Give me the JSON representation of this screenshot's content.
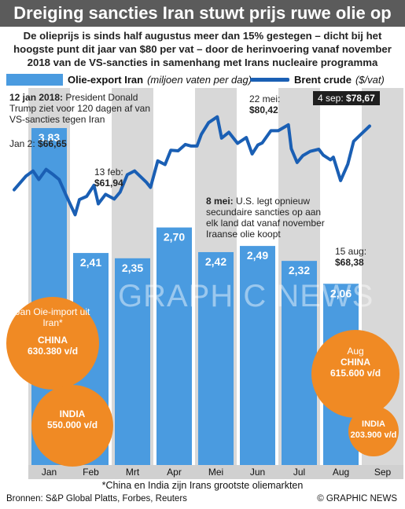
{
  "header": {
    "title": "Dreiging sancties Iran stuwt prijs ruwe olie op",
    "subtitle": "De olieprijs is sinds half augustus meer dan 15% gestegen – dicht bij het hoogste punt dit jaar van $80 per vat – door de herinvoering vanaf november 2018 van de VS-sancties in samenhang met Irans nucleaire programma"
  },
  "legend": {
    "bars_label": "Olie-export Iran",
    "bars_unit": "(miljoen vaten per dag)",
    "line_label": "Brent crude",
    "line_unit": "($/vat)"
  },
  "colors": {
    "bar": "#4a9be0",
    "line": "#1a5fb4",
    "bubble": "#f08a24",
    "header": "#5b5b5b",
    "bg_alt": "#d8d8d8"
  },
  "annotations": {
    "jan12_date": "12 jan 2018:",
    "jan12_text": "President Donald Trump ziet voor 120 dagen af van VS-sancties tegen Iran",
    "jan2_label": "Jan 2:",
    "jan2_value": "$66,65",
    "feb13_label": "13 feb:",
    "feb13_value": "$61,94",
    "may22_label": "22 mei:",
    "may22_value": "$80,42",
    "may8_date": "8 mei:",
    "may8_text": "U.S. legt opnieuw secundaire sancties op aan elk land dat vanaf november Iraanse olie koopt",
    "aug15_label": "15 aug:",
    "aug15_value": "$68,38",
    "sep4_label": "4 sep:",
    "sep4_value": "$78,67"
  },
  "bubbles": {
    "jan_title": "Jan Oie-import uit Iran*",
    "jan_china_label": "CHINA",
    "jan_china_value": "630.380 v/d",
    "jan_india_label": "INDIA",
    "jan_india_value": "550.000 v/d",
    "aug_title": "Aug",
    "aug_china_label": "CHINA",
    "aug_china_value": "615.600 v/d",
    "aug_india_label": "INDIA",
    "aug_india_value": "203.900 v/d"
  },
  "watermark": "GRAPHIC NEWS",
  "footer": {
    "note": "*China en India zijn Irans grootste oliemarkten",
    "sources": "Bronnen: S&P Global Platts, Forbes, Reuters",
    "brand": "© GRAPHIC NEWS"
  },
  "chart_data": [
    {
      "type": "bar",
      "name": "Olie-export Iran",
      "unit": "miljoen vaten per dag",
      "categories": [
        "Jan",
        "Feb",
        "Mrt",
        "Apr",
        "Mei",
        "Jun",
        "Jul",
        "Aug"
      ],
      "values": [
        3.83,
        2.41,
        2.35,
        2.7,
        2.42,
        2.49,
        2.32,
        2.06
      ],
      "value_labels": [
        "3,83",
        "2,41",
        "2,35",
        "2,70",
        "2,42",
        "2,49",
        "2,32",
        "2,06"
      ],
      "x_tick_labels": [
        "Jan",
        "Feb",
        "Mrt",
        "Apr",
        "Mei",
        "Jun",
        "Jul",
        "Aug",
        "Sep"
      ]
    },
    {
      "type": "line",
      "name": "Brent crude",
      "unit": "$/vat",
      "x_range": [
        "2018-01-02",
        "2018-09-04"
      ],
      "ylim": [
        58,
        82
      ],
      "points": [
        [
          "2018-01-02",
          66.65
        ],
        [
          "2018-01-05",
          67.6
        ],
        [
          "2018-01-10",
          69.2
        ],
        [
          "2018-01-15",
          70.2
        ],
        [
          "2018-01-19",
          68.6
        ],
        [
          "2018-01-24",
          70.5
        ],
        [
          "2018-01-29",
          69.5
        ],
        [
          "2018-02-02",
          68.6
        ],
        [
          "2018-02-07",
          65.5
        ],
        [
          "2018-02-13",
          61.94
        ],
        [
          "2018-02-16",
          64.8
        ],
        [
          "2018-02-21",
          65.4
        ],
        [
          "2018-02-26",
          67.5
        ],
        [
          "2018-03-01",
          64.0
        ],
        [
          "2018-03-06",
          65.8
        ],
        [
          "2018-03-12",
          64.9
        ],
        [
          "2018-03-16",
          66.2
        ],
        [
          "2018-03-21",
          69.5
        ],
        [
          "2018-03-26",
          70.2
        ],
        [
          "2018-04-03",
          68.1
        ],
        [
          "2018-04-06",
          67.1
        ],
        [
          "2018-04-11",
          72.1
        ],
        [
          "2018-04-16",
          71.4
        ],
        [
          "2018-04-20",
          74.1
        ],
        [
          "2018-04-25",
          74.0
        ],
        [
          "2018-04-30",
          75.2
        ],
        [
          "2018-05-04",
          74.9
        ],
        [
          "2018-05-08",
          74.9
        ],
        [
          "2018-05-11",
          77.1
        ],
        [
          "2018-05-16",
          79.3
        ],
        [
          "2018-05-22",
          80.42
        ],
        [
          "2018-05-25",
          76.4
        ],
        [
          "2018-05-30",
          77.5
        ],
        [
          "2018-06-05",
          75.4
        ],
        [
          "2018-06-11",
          76.5
        ],
        [
          "2018-06-15",
          73.4
        ],
        [
          "2018-06-19",
          75.1
        ],
        [
          "2018-06-22",
          75.5
        ],
        [
          "2018-06-28",
          77.8
        ],
        [
          "2018-07-03",
          77.8
        ],
        [
          "2018-07-10",
          78.9
        ],
        [
          "2018-07-12",
          74.4
        ],
        [
          "2018-07-16",
          71.8
        ],
        [
          "2018-07-20",
          73.1
        ],
        [
          "2018-07-25",
          73.9
        ],
        [
          "2018-07-31",
          74.3
        ],
        [
          "2018-08-03",
          73.2
        ],
        [
          "2018-08-08",
          72.3
        ],
        [
          "2018-08-10",
          72.8
        ],
        [
          "2018-08-15",
          68.38
        ],
        [
          "2018-08-20",
          71.5
        ],
        [
          "2018-08-24",
          75.8
        ],
        [
          "2018-08-29",
          77.1
        ],
        [
          "2018-09-04",
          78.67
        ]
      ]
    }
  ]
}
